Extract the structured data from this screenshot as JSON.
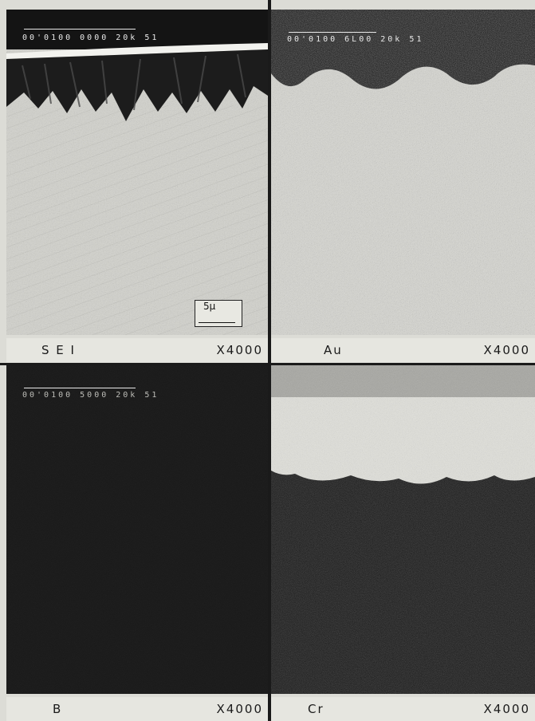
{
  "panels": [
    {
      "id": "sei",
      "label": "S E I",
      "magnification": "X4000",
      "header_text": "00'0100 0000 20k 51"
    },
    {
      "id": "au",
      "label": "Au",
      "magnification": "X4000",
      "header_text": "00'0100 6L00 20k 51"
    },
    {
      "id": "b",
      "label": "B",
      "magnification": "X4000",
      "header_text": "00'0100 5000 20k 51"
    },
    {
      "id": "cr",
      "label": "Cr",
      "magnification": "X4000",
      "header_text": ""
    }
  ],
  "scale_bar": {
    "label": "5µ"
  },
  "colors": {
    "dark": "#141414",
    "light": "#e3e3dd",
    "caption_bg": "#e6e6e0"
  }
}
